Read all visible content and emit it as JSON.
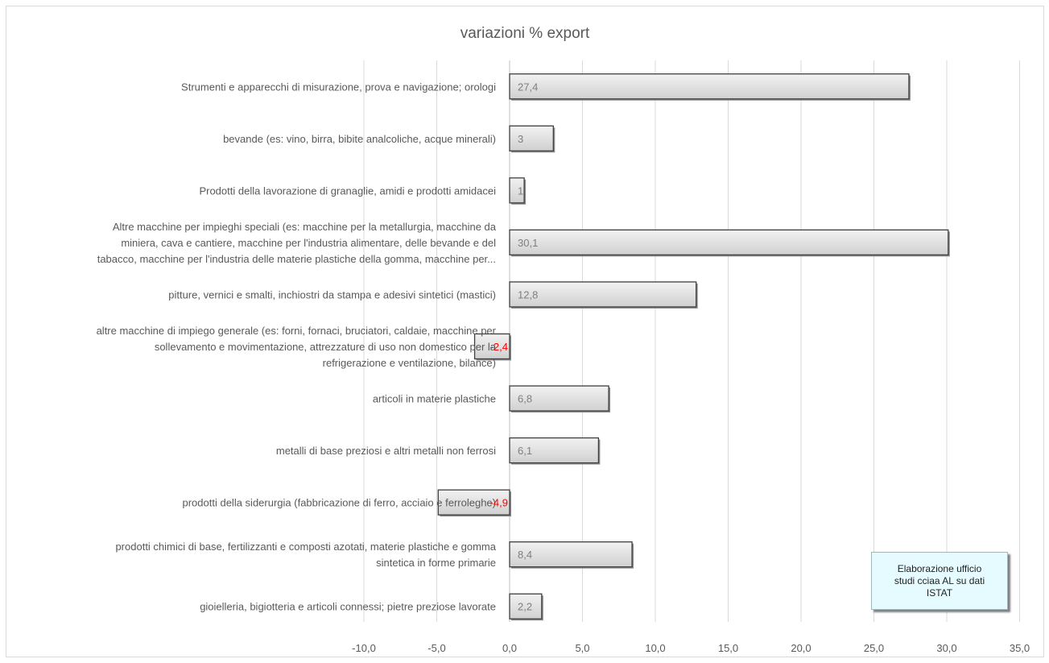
{
  "chart_data": {
    "type": "bar",
    "orientation": "horizontal",
    "title": "variazioni % export",
    "categories": [
      [
        "Strumenti e apparecchi di misurazione, prova e navigazione; orologi"
      ],
      [
        "bevande (es: vino, birra, bibite analcoliche, acque minerali)"
      ],
      [
        "Prodotti della lavorazione di granaglie, amidi e prodotti amidacei"
      ],
      [
        "Altre macchine per impieghi speciali (es: macchine per la metallurgia, macchine da",
        "miniera, cava e cantiere, macchine per l'industria alimentare, delle bevande e del",
        "tabacco, macchine per l'industria delle materie plastiche della gomma, macchine per..."
      ],
      [
        "pitture, vernici e smalti, inchiostri da stampa e adesivi sintetici (mastici)"
      ],
      [
        "altre macchine di impiego generale (es: forni, fornaci, bruciatori, caldaie, macchine per",
        "sollevamento e movimentazione, attrezzature di uso non domestico per la",
        "refrigerazione e ventilazione, bilance)"
      ],
      [
        "articoli in materie plastiche"
      ],
      [
        "metalli di base preziosi e altri metalli non ferrosi"
      ],
      [
        "prodotti della siderurgia (fabbricazione di ferro, acciaio e ferroleghe)"
      ],
      [
        "prodotti chimici di base, fertilizzanti e composti azotati, materie plastiche e gomma",
        "sintetica in forme primarie"
      ],
      [
        "gioielleria, bigiotteria e articoli connessi; pietre preziose lavorate"
      ]
    ],
    "values": [
      27.4,
      3,
      1,
      30.1,
      12.8,
      -2.4,
      6.8,
      6.1,
      -4.9,
      8.4,
      2.2
    ],
    "value_labels": [
      "27,4",
      "3",
      "1",
      "30,1",
      "12,8",
      "-2,4",
      "6,8",
      "6,1",
      "-4,9",
      "8,4",
      "2,2"
    ],
    "xlim": [
      -10,
      35
    ],
    "xticks": [
      -10,
      -5,
      0,
      5,
      10,
      15,
      20,
      25,
      30,
      35
    ],
    "xtick_labels": [
      "-10,0",
      "-5,0",
      "0,0",
      "5,0",
      "10,0",
      "15,0",
      "20,0",
      "25,0",
      "30,0",
      "35,0"
    ],
    "grid": "vertical",
    "colors": {
      "bar_fill": "#d9d9d9",
      "bar_stroke": "#3f3f3f",
      "positive_label": "#7f7f7f",
      "negative_label": "#ff0000",
      "grid": "#d9d9d9",
      "text": "#595959"
    }
  },
  "annotation": {
    "lines": [
      "Elaborazione ufficio",
      "studi cciaa AL su dati",
      "ISTAT"
    ]
  }
}
